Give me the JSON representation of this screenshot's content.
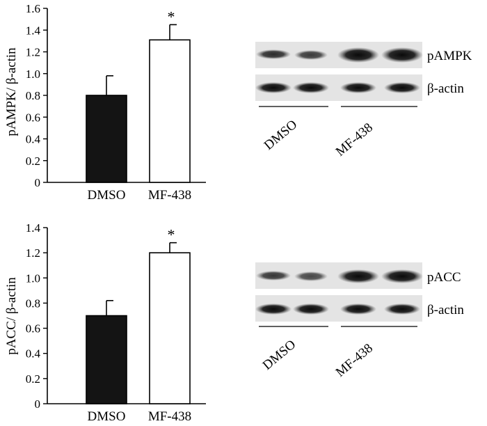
{
  "chart_data": [
    {
      "type": "bar",
      "categories": [
        "DMSO",
        "MF-438"
      ],
      "values": [
        0.8,
        1.31
      ],
      "errors": [
        0.18,
        0.14
      ],
      "bar_colors": [
        "#141414",
        "#ffffff"
      ],
      "significance": [
        "",
        "*"
      ],
      "ylabel": "pAMPK/ β-actin",
      "ylim": [
        0,
        1.6
      ],
      "yticks": [
        "0",
        "0.2",
        "0.4",
        "0.6",
        "0.8",
        "1.0",
        "1.2",
        "1.4",
        "1.6"
      ],
      "grid": false,
      "blot": {
        "bands": [
          "pAMPK",
          "β-actin"
        ],
        "groups": [
          "DMSO",
          "MF-438"
        ]
      }
    },
    {
      "type": "bar",
      "categories": [
        "DMSO",
        "MF-438"
      ],
      "values": [
        0.7,
        1.2
      ],
      "errors": [
        0.12,
        0.08
      ],
      "bar_colors": [
        "#141414",
        "#ffffff"
      ],
      "significance": [
        "",
        "*"
      ],
      "ylabel": "pACC/ β-actin",
      "ylim": [
        0,
        1.4
      ],
      "yticks": [
        "0",
        "0.2",
        "0.4",
        "0.6",
        "0.8",
        "1.0",
        "1.2",
        "1.4"
      ],
      "grid": false,
      "blot": {
        "bands": [
          "pACC",
          "β-actin"
        ],
        "groups": [
          "DMSO",
          "MF-438"
        ]
      }
    }
  ]
}
